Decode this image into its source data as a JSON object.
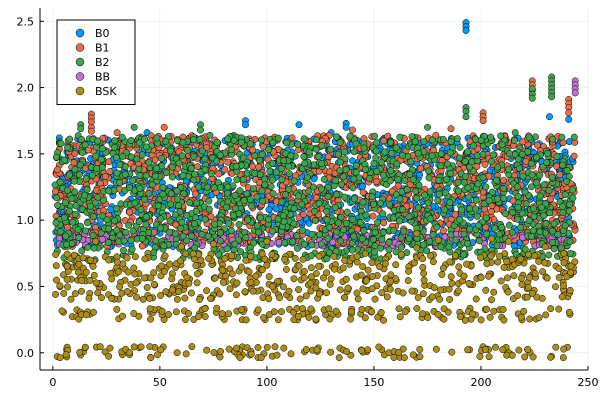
{
  "chart_data": {
    "type": "scatter",
    "title": "",
    "xlabel": "",
    "ylabel": "",
    "xlim": [
      -6,
      250
    ],
    "ylim": [
      -0.13,
      2.6
    ],
    "x_ticks": [
      0,
      50,
      100,
      150,
      200,
      250
    ],
    "x_tick_labels": [
      "0",
      "50",
      "100",
      "150",
      "200",
      "250"
    ],
    "y_ticks": [
      0.0,
      0.5,
      1.0,
      1.5,
      2.0,
      2.5
    ],
    "y_tick_labels": [
      "0.0",
      "0.5",
      "1.0",
      "1.5",
      "2.0",
      "2.5"
    ],
    "grid": true,
    "legend_position": "top-left",
    "x_range_of_points": [
      1,
      244
    ],
    "series": [
      {
        "name": "B0",
        "color": "#009AFA",
        "bands": [
          [
            0.8,
            1.62
          ]
        ],
        "outliers": [
          [
            193,
            2.49
          ],
          [
            193,
            2.46
          ],
          [
            193,
            2.43
          ],
          [
            90,
            1.75
          ],
          [
            90,
            1.72
          ],
          [
            115,
            1.72
          ],
          [
            137,
            1.73
          ],
          [
            137,
            1.7
          ],
          [
            241,
            1.76
          ],
          [
            232,
            1.78
          ],
          [
            3,
            1.62
          ],
          [
            44,
            1.66
          ],
          [
            130,
            1.66
          ]
        ]
      },
      {
        "name": "B1",
        "color": "#E36F47",
        "bands": [
          [
            0.8,
            1.64
          ]
        ],
        "outliers": [
          [
            18,
            1.8
          ],
          [
            18,
            1.77
          ],
          [
            18,
            1.74
          ],
          [
            18,
            1.7
          ],
          [
            18,
            1.67
          ],
          [
            52,
            1.7
          ],
          [
            201,
            1.81
          ],
          [
            201,
            1.78
          ],
          [
            201,
            1.75
          ],
          [
            224,
            2.05
          ],
          [
            224,
            2.02
          ],
          [
            224,
            1.98
          ],
          [
            241,
            1.91
          ],
          [
            241,
            1.88
          ],
          [
            241,
            1.85
          ],
          [
            241,
            1.81
          ],
          [
            186,
            1.69
          ],
          [
            30,
            1.66
          ],
          [
            140,
            1.68
          ]
        ]
      },
      {
        "name": "B2",
        "color": "#3EA44E",
        "bands": [
          [
            0.7,
            1.64
          ]
        ],
        "outliers": [
          [
            233,
            2.08
          ],
          [
            233,
            2.05
          ],
          [
            233,
            2.02
          ],
          [
            233,
            1.99
          ],
          [
            233,
            1.96
          ],
          [
            233,
            1.93
          ],
          [
            224,
            1.99
          ],
          [
            224,
            1.95
          ],
          [
            224,
            1.92
          ],
          [
            193,
            1.85
          ],
          [
            193,
            1.82
          ],
          [
            193,
            1.78
          ],
          [
            13,
            1.72
          ],
          [
            13,
            1.69
          ],
          [
            69,
            1.72
          ],
          [
            69,
            1.68
          ],
          [
            216,
            1.66
          ],
          [
            38,
            1.7
          ],
          [
            175,
            1.7
          ]
        ]
      },
      {
        "name": "BB",
        "color": "#C270D2",
        "bands": [
          [
            0.8,
            0.9
          ]
        ],
        "outliers": [
          [
            3,
            0.9
          ],
          [
            3,
            0.86
          ],
          [
            3,
            0.82
          ],
          [
            31,
            0.82
          ],
          [
            54,
            0.88
          ],
          [
            56,
            0.86
          ],
          [
            244,
            2.05
          ],
          [
            244,
            2.02
          ],
          [
            244,
            1.99
          ],
          [
            244,
            1.96
          ]
        ]
      },
      {
        "name": "BSK",
        "color": "#AC8D18",
        "bands": [
          [
            0.4,
            0.75
          ],
          [
            0.24,
            0.34
          ],
          [
            -0.04,
            0.05
          ]
        ],
        "outliers": [
          [
            20,
            0.84
          ],
          [
            60,
            0.8
          ],
          [
            75,
            0.82
          ],
          [
            100,
            0.84
          ],
          [
            170,
            0.9
          ],
          [
            180,
            0.85
          ],
          [
            205,
            0.86
          ],
          [
            213,
            0.84
          ],
          [
            230,
            0.8
          ],
          [
            170,
            0.79
          ]
        ]
      }
    ]
  }
}
